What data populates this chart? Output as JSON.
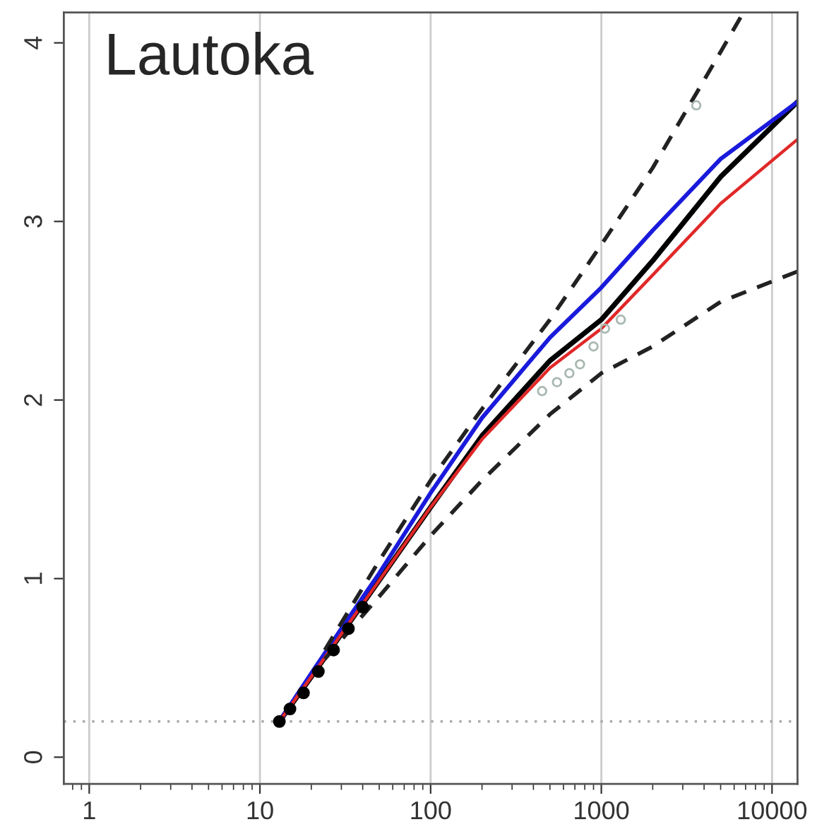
{
  "chart_data": {
    "type": "line",
    "title": "Lautoka",
    "log": "x",
    "grid": "x",
    "xlim": [
      0.71,
      14100
    ],
    "ylim": [
      -0.15,
      4.17
    ],
    "xticks": [
      1,
      10,
      100,
      1000,
      10000
    ],
    "yticks": [
      0,
      1,
      2,
      3,
      4
    ],
    "ref_lines": [
      {
        "axis": "y",
        "value": 0.2,
        "color": "#aaaaaa",
        "line_style": "dotted"
      }
    ],
    "series": [
      {
        "color": "#000000",
        "line_style": "solid",
        "x": [
          13,
          20,
          30,
          50,
          100,
          200,
          500,
          1000,
          2000,
          5000,
          14100
        ],
        "values": [
          0.2,
          0.45,
          0.69,
          0.99,
          1.4,
          1.8,
          2.22,
          2.45,
          2.78,
          3.25,
          3.67
        ]
      },
      {
        "color": "#1a1adc",
        "line_style": "solid",
        "x": [
          13,
          20,
          30,
          50,
          100,
          200,
          500,
          1000,
          2000,
          5000,
          14100
        ],
        "values": [
          0.2,
          0.47,
          0.72,
          1.03,
          1.48,
          1.9,
          2.35,
          2.63,
          2.95,
          3.35,
          3.67
        ]
      },
      {
        "color": "#e02828",
        "line_style": "solid",
        "x": [
          13,
          20,
          30,
          50,
          100,
          200,
          500,
          1000,
          2000,
          5000,
          14100
        ],
        "values": [
          0.2,
          0.45,
          0.69,
          0.99,
          1.4,
          1.78,
          2.18,
          2.4,
          2.7,
          3.1,
          3.46
        ]
      },
      {
        "color": "#222222",
        "line_style": "dashed",
        "x": [
          24,
          50,
          100,
          200,
          500,
          1000,
          2000,
          5000,
          6800
        ],
        "values": [
          0.6,
          1.1,
          1.55,
          1.95,
          2.45,
          2.87,
          3.3,
          3.95,
          4.17
        ]
      },
      {
        "color": "#222222",
        "line_style": "dashed",
        "x": [
          24,
          50,
          100,
          200,
          500,
          1000,
          2000,
          5000,
          14100
        ],
        "values": [
          0.55,
          0.9,
          1.24,
          1.55,
          1.92,
          2.15,
          2.3,
          2.55,
          2.72
        ]
      },
      {
        "type": "scatter",
        "color": "#000000",
        "marker": "circle",
        "x": [
          13,
          15,
          18,
          22,
          27,
          33,
          40
        ],
        "values": [
          0.2,
          0.27,
          0.36,
          0.48,
          0.6,
          0.72,
          0.84
        ]
      },
      {
        "type": "scatter",
        "color": "#a8b8b0",
        "marker": "circle",
        "x": [
          450,
          550,
          650,
          750,
          900,
          1050,
          1300,
          3600
        ],
        "values": [
          2.05,
          2.1,
          2.15,
          2.2,
          2.3,
          2.4,
          2.45,
          3.65
        ]
      }
    ]
  }
}
